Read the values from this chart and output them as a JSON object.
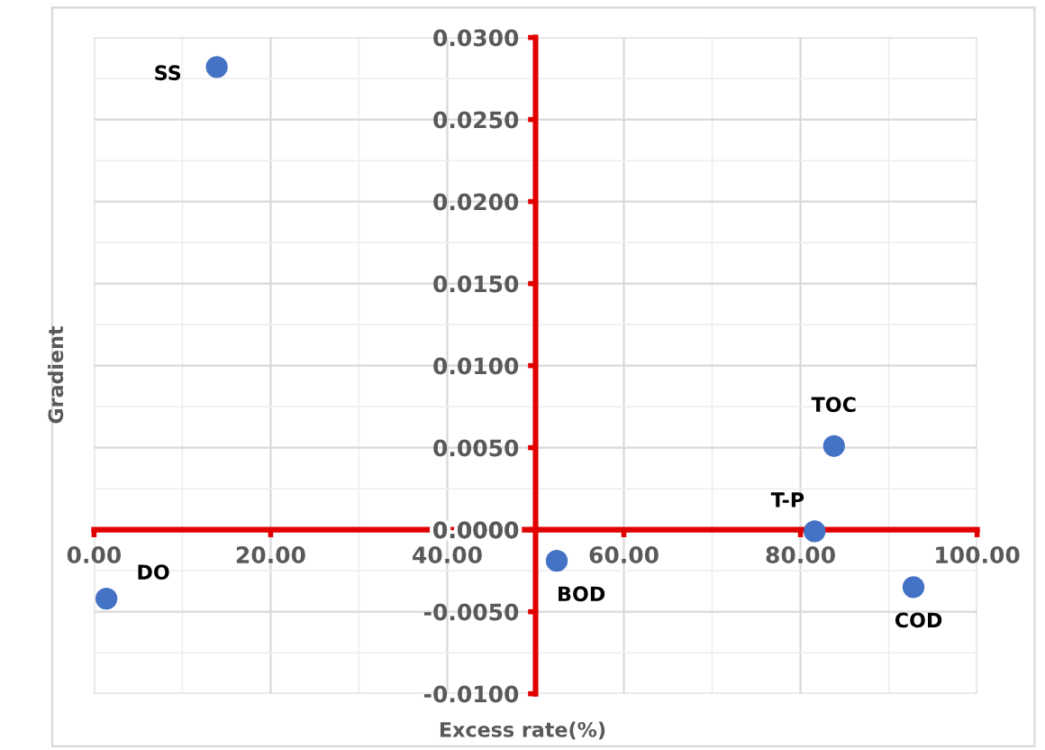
{
  "chart_data": {
    "type": "scatter",
    "xlabel": "Excess rate(%)",
    "ylabel": "Gradient",
    "series": [
      {
        "color": "#4472c4",
        "x": [
          13.9,
          1.4,
          52.4,
          81.6,
          83.8,
          92.8
        ],
        "values": [
          0.0282,
          -0.0042,
          -0.0019,
          -0.0001,
          0.0051,
          -0.0035
        ]
      }
    ],
    "annotations": [
      {
        "text": "SS",
        "x": 13.9,
        "y": 0.0282
      },
      {
        "text": "DO",
        "x": 1.4,
        "y": -0.0042
      },
      {
        "text": "BOD",
        "x": 52.4,
        "y": -0.0019
      },
      {
        "text": "T-P",
        "x": 81.6,
        "y": -0.0001
      },
      {
        "text": "TOC",
        "x": 83.8,
        "y": 0.0051
      },
      {
        "text": "COD",
        "x": 92.8,
        "y": -0.0035
      }
    ],
    "xlim": [
      0,
      100
    ],
    "ylim": [
      -0.01,
      0.03
    ],
    "xticks": [
      {
        "value": 0,
        "label": "0.00"
      },
      {
        "value": 20,
        "label": "20.00"
      },
      {
        "value": 40,
        "label": "40.00"
      },
      {
        "value": 60,
        "label": "60.00"
      },
      {
        "value": 80,
        "label": "80.00"
      },
      {
        "value": 100,
        "label": "100.00"
      }
    ],
    "yticks": [
      {
        "value": -0.01,
        "label": "-0.0100"
      },
      {
        "value": -0.005,
        "label": "-0.0050"
      },
      {
        "value": 0,
        "label": "0.0000"
      },
      {
        "value": 0.005,
        "label": "0.0050"
      },
      {
        "value": 0.01,
        "label": "0.0100"
      },
      {
        "value": 0.015,
        "label": "0.0150"
      },
      {
        "value": 0.02,
        "label": "0.0200"
      },
      {
        "value": 0.025,
        "label": "0.0250"
      },
      {
        "value": 0.03,
        "label": "0.0300"
      }
    ],
    "grid": true,
    "marker": "circle"
  }
}
